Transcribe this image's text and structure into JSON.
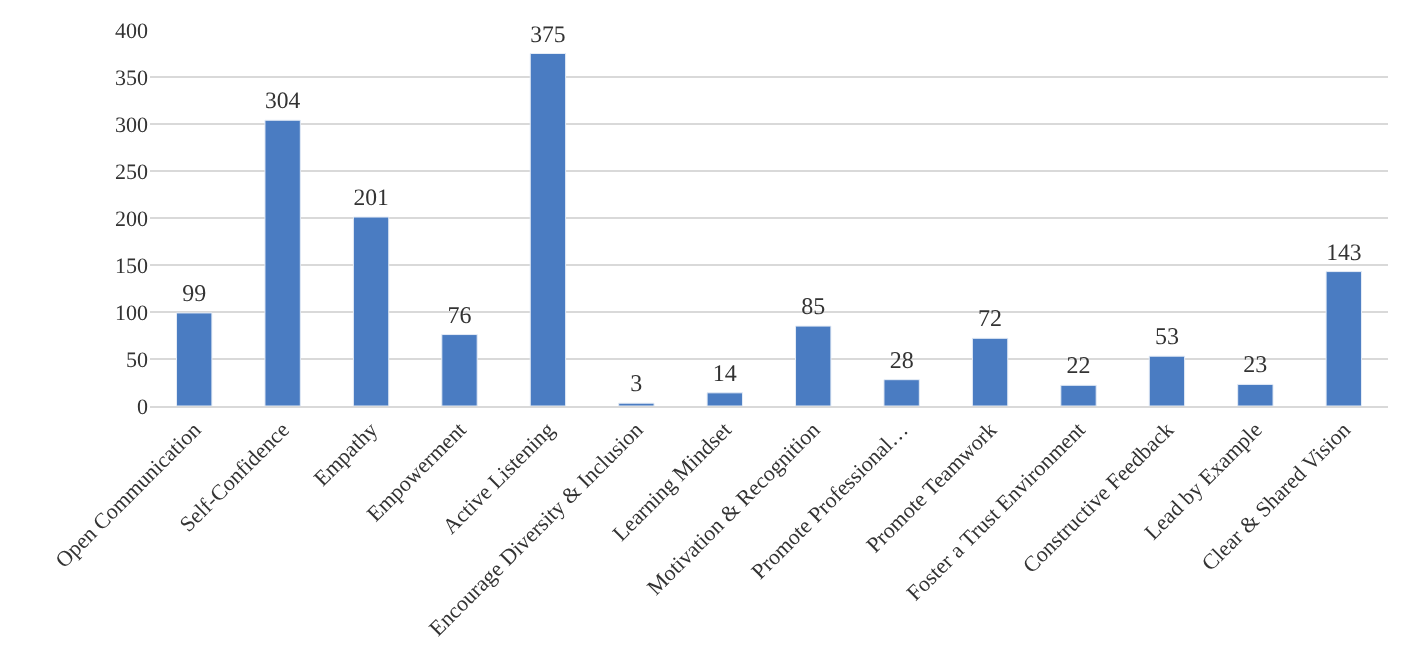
{
  "chart_data": {
    "type": "bar",
    "categories": [
      "Open Communication",
      "Self-Confidence",
      "Empathy",
      "Empowerment",
      "Active Listening",
      "Encourage Diversity & Inclusion",
      "Learning Mindset",
      "Motivation & Recognition",
      "Promote Professional…",
      "Promote Teamwork",
      "Foster a Trust Environment",
      "Constructive Feedback",
      "Lead by Example",
      "Clear & Shared Vision"
    ],
    "values": [
      99,
      304,
      201,
      76,
      375,
      3,
      14,
      85,
      28,
      72,
      22,
      53,
      23,
      143
    ],
    "color": "#4a7cc2",
    "ylim": [
      0,
      400
    ],
    "yticks": [
      0,
      50,
      100,
      150,
      200,
      250,
      300,
      350,
      400
    ],
    "grid": "y",
    "data_labels": true,
    "legend": false
  }
}
